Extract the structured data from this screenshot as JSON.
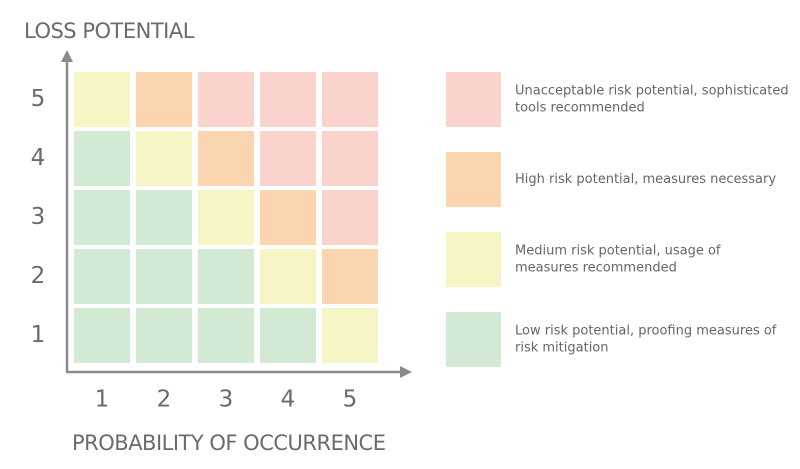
{
  "y_axis_label": "LOSS POTENTIAL",
  "x_axis_label": "PROBABILITY OF OCCURRENCE",
  "x_labels": [
    "1",
    "2",
    "3",
    "4",
    "5"
  ],
  "y_labels": [
    "5",
    "4",
    "3",
    "2",
    "1"
  ],
  "cells": [
    [
      "#f6f5c6",
      "#fad5b0",
      "#f9d3cc",
      "#f9d3cc",
      "#f9d3cc"
    ],
    [
      "#d2ead3",
      "#f6f5c6",
      "#fad5b0",
      "#f9d3cc",
      "#f9d3cc"
    ],
    [
      "#d2ead3",
      "#d2ead3",
      "#f6f5c6",
      "#fad5b0",
      "#f9d3cc"
    ],
    [
      "#d2ead3",
      "#d2ead3",
      "#d2ead3",
      "#f6f5c6",
      "#fad5b0"
    ],
    [
      "#d2ead3",
      "#d2ead3",
      "#d2ead3",
      "#d2ead3",
      "#f6f5c6"
    ]
  ],
  "legend": [
    {
      "color": "#f9d3cc",
      "lines": [
        "Unacceptable risk potential, sophisticated",
        "tools recommended"
      ]
    },
    {
      "color": "#fad5b0",
      "lines": [
        "High risk potential, measures necessary"
      ]
    },
    {
      "color": "#f6f5c6",
      "lines": [
        "Medium risk potential, usage of",
        "measures recommended"
      ]
    },
    {
      "color": "#d2ead3",
      "lines": [
        "Low risk potential, proofing measures of",
        "risk mitigation"
      ]
    }
  ]
}
